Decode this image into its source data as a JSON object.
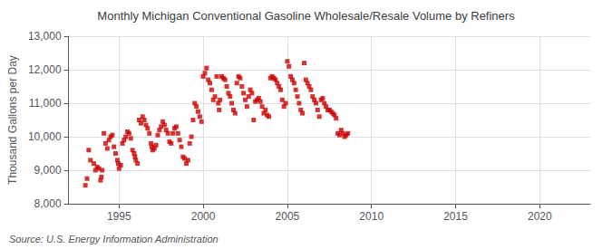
{
  "chart_data": {
    "type": "scatter",
    "title": "Monthly Michigan Conventional Gasoline Wholesale/Resale Volume by Refiners",
    "ylabel": "Thousand Gallons per Day",
    "annotations": [
      "Source: U.S. Energy Information Administration"
    ],
    "color": "#cc0000",
    "marker": "square",
    "grid": true,
    "xlim": [
      1992,
      2023
    ],
    "ylim": [
      8000,
      13000
    ],
    "xticks": [
      1995,
      2000,
      2005,
      2010,
      2015,
      2020
    ],
    "yticks": [
      {
        "value": 8000,
        "label": "8,000"
      },
      {
        "value": 9000,
        "label": "9,000"
      },
      {
        "value": 10000,
        "label": "10,000"
      },
      {
        "value": 11000,
        "label": "11,000"
      },
      {
        "value": 12000,
        "label": "12,000"
      },
      {
        "value": 13000,
        "label": "13,000"
      }
    ],
    "x": [
      1993.0,
      1993.1,
      1993.2,
      1993.3,
      1993.5,
      1993.6,
      1993.7,
      1993.8,
      1993.9,
      1993.95,
      1994.0,
      1994.1,
      1994.2,
      1994.3,
      1994.4,
      1994.5,
      1994.6,
      1994.7,
      1994.8,
      1994.9,
      1994.95,
      1995.0,
      1995.1,
      1995.2,
      1995.3,
      1995.4,
      1995.5,
      1995.6,
      1995.7,
      1995.8,
      1995.9,
      1995.95,
      1996.0,
      1996.1,
      1996.2,
      1996.3,
      1996.4,
      1996.5,
      1996.6,
      1996.7,
      1996.8,
      1996.9,
      1996.95,
      1997.0,
      1997.1,
      1997.2,
      1997.3,
      1997.4,
      1997.5,
      1997.6,
      1997.7,
      1997.8,
      1997.9,
      1998.0,
      1998.1,
      1998.2,
      1998.3,
      1998.4,
      1998.5,
      1998.6,
      1998.7,
      1998.8,
      1998.9,
      1999.0,
      1999.1,
      1999.2,
      1999.3,
      1999.4,
      1999.5,
      1999.6,
      1999.7,
      1999.8,
      1999.9,
      2000.0,
      2000.1,
      2000.2,
      2000.3,
      2000.4,
      2000.5,
      2000.6,
      2000.7,
      2000.8,
      2000.9,
      2000.95,
      2001.0,
      2001.1,
      2001.2,
      2001.3,
      2001.4,
      2001.5,
      2001.6,
      2001.7,
      2001.8,
      2001.9,
      2002.0,
      2002.1,
      2002.2,
      2002.3,
      2002.4,
      2002.5,
      2002.6,
      2002.7,
      2002.8,
      2002.9,
      2003.0,
      2003.1,
      2003.2,
      2003.3,
      2003.4,
      2003.5,
      2003.6,
      2003.7,
      2003.8,
      2003.9,
      2004.0,
      2004.1,
      2004.2,
      2004.3,
      2004.4,
      2004.5,
      2004.6,
      2004.7,
      2004.8,
      2004.9,
      2005.0,
      2005.1,
      2005.2,
      2005.3,
      2005.4,
      2005.5,
      2005.6,
      2005.7,
      2005.8,
      2005.9,
      2006.0,
      2006.1,
      2006.2,
      2006.3,
      2006.4,
      2006.5,
      2006.6,
      2006.7,
      2006.8,
      2006.9,
      2007.0,
      2007.1,
      2007.2,
      2007.3,
      2007.4,
      2007.5,
      2007.6,
      2007.7,
      2007.8,
      2007.9,
      2008.0,
      2008.1,
      2008.2,
      2008.3,
      2008.4,
      2008.5,
      2008.6
    ],
    "values": [
      8550,
      8750,
      9600,
      9300,
      9200,
      9000,
      9100,
      9050,
      8700,
      8800,
      9000,
      10100,
      9800,
      9650,
      9900,
      10000,
      10050,
      9700,
      9500,
      9300,
      9200,
      9050,
      9150,
      9800,
      9900,
      10000,
      10150,
      10100,
      9950,
      9600,
      9500,
      9400,
      9300,
      9200,
      10500,
      10400,
      10600,
      10500,
      10350,
      10250,
      10100,
      9800,
      9700,
      9600,
      9650,
      9750,
      10050,
      10200,
      10300,
      10450,
      10350,
      10200,
      10100,
      9850,
      9800,
      10100,
      10250,
      10300,
      10100,
      9900,
      9700,
      9400,
      9350,
      9200,
      9300,
      9800,
      10000,
      10500,
      11000,
      10900,
      10750,
      10600,
      10450,
      11800,
      11900,
      12050,
      11700,
      11600,
      11400,
      11100,
      11200,
      11800,
      11000,
      10800,
      11100,
      11800,
      11750,
      11700,
      11500,
      11300,
      11200,
      11000,
      10800,
      10700,
      11600,
      11800,
      11750,
      11500,
      11300,
      11100,
      10900,
      11200,
      11400,
      11300,
      10500,
      11050,
      11100,
      11150,
      11050,
      10900,
      10700,
      10800,
      10650,
      10600,
      11750,
      11800,
      11750,
      11700,
      11600,
      11500,
      11400,
      11100,
      10900,
      11000,
      12250,
      12100,
      11800,
      11700,
      11600,
      11400,
      11200,
      11000,
      10800,
      10700,
      12200,
      11700,
      11600,
      11500,
      11400,
      11200,
      11100,
      11000,
      10800,
      10600,
      11100,
      11150,
      11000,
      10900,
      10800,
      10800,
      10750,
      10700,
      10650,
      10550,
      10100,
      10050,
      10200,
      10100,
      10000,
      10050,
      10100
    ]
  }
}
